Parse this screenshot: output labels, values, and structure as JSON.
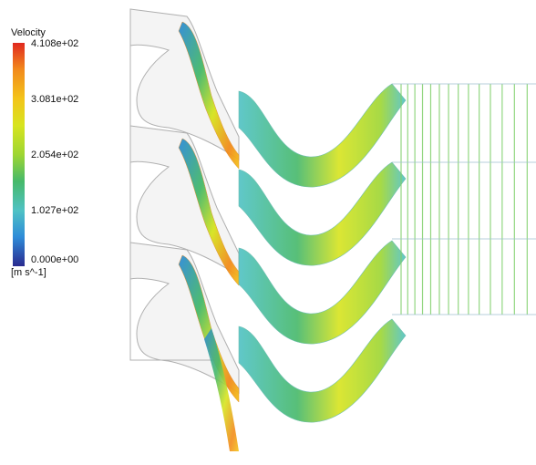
{
  "legend": {
    "title": "Velocity",
    "unit": "[m s^-1]",
    "ticks": [
      "4.108e+02",
      "3.081e+02",
      "2.054e+02",
      "1.027e+02",
      "0.000e+00"
    ],
    "colormap": [
      "#2a2a8f",
      "#2e8bd8",
      "#4fc2c4",
      "#46b96a",
      "#9ed632",
      "#d7e41f",
      "#f3c41a",
      "#f28a1c",
      "#e0281f"
    ]
  },
  "figure": {
    "stator_passages": 3,
    "rotor_passages": 4,
    "wake_lines": 20
  }
}
